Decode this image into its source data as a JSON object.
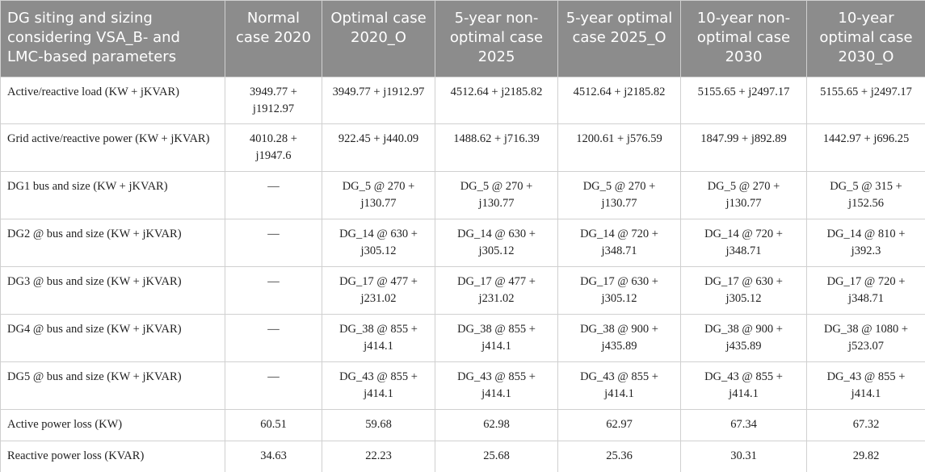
{
  "table": {
    "header": [
      "DG siting and sizing considering VSA_B- and LMC-based parameters",
      "Normal case 2020",
      "Optimal case 2020_O",
      "5-year non-optimal case 2025",
      "5-year optimal case 2025_O",
      "10-year non-optimal case 2030",
      "10-year optimal case 2030_O"
    ],
    "rows": [
      [
        "Active/reactive load (KW + jKVAR)",
        "3949.77 + j1912.97",
        "3949.77 + j1912.97",
        "4512.64 + j2185.82",
        "4512.64 + j2185.82",
        "5155.65 + j2497.17",
        "5155.65 + j2497.17"
      ],
      [
        "Grid active/reactive power (KW + jKVAR)",
        "4010.28 + j1947.6",
        "922.45 + j440.09",
        "1488.62 + j716.39",
        "1200.61 + j576.59",
        "1847.99 + j892.89",
        "1442.97 + j696.25"
      ],
      [
        "DG1 bus and size (KW + jKVAR)",
        "—",
        "DG_5 @ 270 + j130.77",
        "DG_5 @ 270 + j130.77",
        "DG_5 @ 270 + j130.77",
        "DG_5 @ 270 + j130.77",
        "DG_5 @ 315 + j152.56"
      ],
      [
        "DG2 @ bus and size (KW + jKVAR)",
        "—",
        "DG_14 @ 630 + j305.12",
        "DG_14 @ 630 + j305.12",
        "DG_14 @ 720 + j348.71",
        "DG_14 @ 720 + j348.71",
        "DG_14 @ 810 + j392.3"
      ],
      [
        "DG3 @ bus and size (KW + jKVAR)",
        "—",
        "DG_17 @ 477 + j231.02",
        "DG_17 @ 477 + j231.02",
        "DG_17 @ 630 + j305.12",
        "DG_17 @ 630 + j305.12",
        "DG_17 @ 720 + j348.71"
      ],
      [
        "DG4 @ bus and size (KW + jKVAR)",
        "—",
        "DG_38 @ 855 + j414.1",
        "DG_38 @ 855 + j414.1",
        "DG_38 @ 900 + j435.89",
        "DG_38 @ 900 + j435.89",
        "DG_38 @ 1080 + j523.07"
      ],
      [
        "DG5 @ bus and size (KW + jKVAR)",
        "—",
        "DG_43 @ 855 + j414.1",
        "DG_43 @ 855 + j414.1",
        "DG_43 @ 855 + j414.1",
        "DG_43 @ 855 + j414.1",
        "DG_43 @ 855 + j414.1"
      ],
      [
        "Active power loss (KW)",
        "60.51",
        "59.68",
        "62.98",
        "62.97",
        "67.34",
        "67.32"
      ],
      [
        "Reactive power loss (KVAR)",
        "34.63",
        "22.23",
        "25.68",
        "25.36",
        "30.31",
        "29.82"
      ]
    ]
  }
}
